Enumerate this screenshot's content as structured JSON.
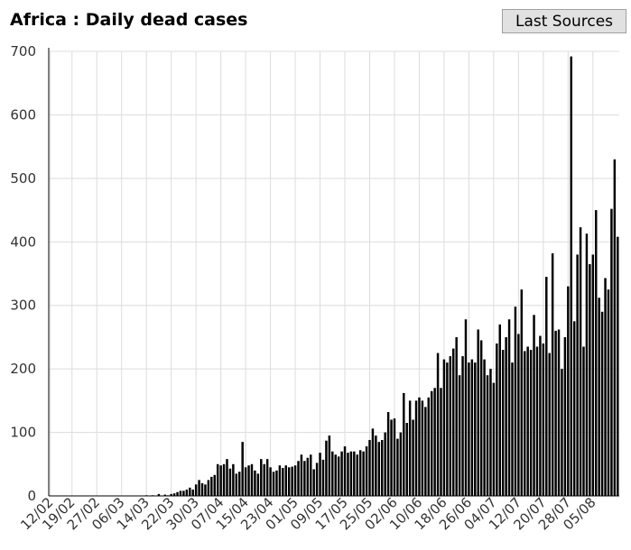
{
  "page": {
    "title": "Africa : Daily dead cases",
    "sources_button": "Last Sources"
  },
  "colors": {
    "bar": "#000000",
    "grid": "#dcdcdc",
    "axis": "#000000"
  },
  "chart_data": {
    "type": "bar",
    "title": "Africa : Daily dead cases",
    "xlabel": "",
    "ylabel": "",
    "ylim": [
      0,
      700
    ],
    "yticks": [
      0,
      100,
      200,
      300,
      400,
      500,
      600,
      700
    ],
    "grid": true,
    "xtick_labels": [
      "12/02",
      "19/02",
      "27/02",
      "06/03",
      "14/03",
      "22/03",
      "30/03",
      "07/04",
      "15/04",
      "23/04",
      "01/05",
      "09/05",
      "17/05",
      "25/05",
      "02/06",
      "10/06",
      "18/06",
      "26/06",
      "04/07",
      "12/07",
      "20/07",
      "28/07",
      "05/08"
    ],
    "x_start_date": "2020-02-12",
    "values": [
      0,
      0,
      0,
      0,
      0,
      0,
      0,
      0,
      0,
      0,
      0,
      0,
      0,
      0,
      0,
      0,
      0,
      0,
      0,
      0,
      0,
      0,
      0,
      0,
      0,
      0,
      0,
      0,
      0,
      0,
      0,
      1,
      0,
      1,
      0,
      3,
      0,
      2,
      1,
      3,
      4,
      6,
      8,
      8,
      10,
      13,
      10,
      18,
      25,
      20,
      18,
      25,
      30,
      33,
      50,
      48,
      50,
      58,
      43,
      50,
      35,
      38,
      85,
      45,
      48,
      50,
      40,
      35,
      58,
      50,
      58,
      45,
      38,
      40,
      48,
      44,
      48,
      45,
      46,
      48,
      55,
      65,
      55,
      60,
      65,
      42,
      52,
      68,
      57,
      87,
      95,
      70,
      65,
      62,
      70,
      78,
      68,
      70,
      70,
      65,
      72,
      70,
      78,
      88,
      106,
      95,
      85,
      88,
      100,
      132,
      120,
      122,
      90,
      100,
      162,
      115,
      150,
      120,
      150,
      155,
      150,
      140,
      155,
      165,
      170,
      225,
      170,
      215,
      210,
      220,
      232,
      250,
      190,
      220,
      278,
      210,
      215,
      210,
      262,
      245,
      215,
      190,
      200,
      178,
      240,
      270,
      230,
      250,
      278,
      210,
      298,
      255,
      325,
      228,
      235,
      230,
      285,
      235,
      252,
      240,
      345,
      225,
      382,
      260,
      262,
      200,
      250,
      330,
      692,
      275,
      380,
      423,
      235,
      413,
      365,
      380,
      450,
      312,
      290,
      343,
      325,
      452,
      530,
      408
    ]
  }
}
